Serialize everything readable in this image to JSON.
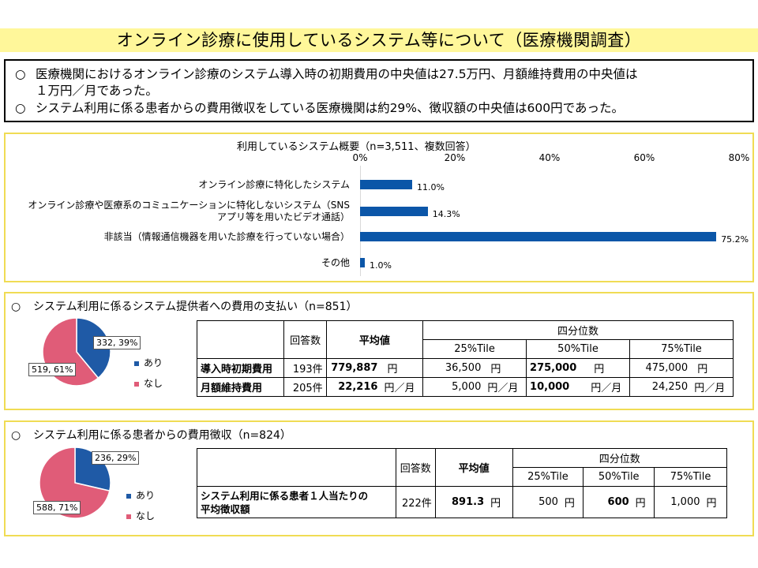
{
  "title": "オンライン診療に使用しているシステム等について（医療機関調査）",
  "summary": {
    "bullet": "○",
    "line1a": "医療機関におけるオンライン診療のシステム導入時の初期費用の中央値は27.5万円、月額維持費用の中央値は",
    "line1b": "１万円／月であった。",
    "line2": "システム利用に係る患者からの費用徴収をしている医療機関は約29%、徴収額の中央値は600円であった。"
  },
  "chart_data": {
    "type": "bar",
    "orientation": "horizontal",
    "title": "利用しているシステム概要（n=3,511、複数回答）",
    "categories": [
      "オンライン診療に特化したシステム",
      "オンライン診療や医療系のコミュニケーションに特化しないシステム（SNSアプリ等を用いたビデオ通話）",
      "非該当（情報通信機器を用いた診療を行っていない場合）",
      "その他"
    ],
    "values": [
      11.0,
      14.3,
      75.2,
      1.0
    ],
    "value_labels": [
      "11.0%",
      "14.3%",
      "75.2%",
      "1.0%"
    ],
    "xlim": [
      0,
      80
    ],
    "x_ticks": [
      "0%",
      "20%",
      "40%",
      "60%",
      "80%"
    ],
    "color": "#0b56a8",
    "category_label_lines": [
      [
        "オンライン診療に特化したシステム"
      ],
      [
        "オンライン診療や医療系のコミュニケーションに特化しないシステム（SNS",
        "アプリ等を用いたビデオ通話）"
      ],
      [
        "非該当（情報通信機器を用いた診療を行っていない場合）"
      ],
      [
        "その他"
      ]
    ]
  },
  "section2": {
    "heading": "システム利用に係るシステム提供者への費用の支払い（n=851）",
    "pie": {
      "slices": [
        {
          "name": "あり",
          "value": 332,
          "percent": 39,
          "label": "332, 39%",
          "color": "#1f5aa6"
        },
        {
          "name": "なし",
          "value": 519,
          "percent": 61,
          "label": "519, 61%",
          "color": "#e05c78"
        }
      ],
      "legend": [
        "あり",
        "なし"
      ]
    },
    "table": {
      "col_count": "回答数",
      "col_mean": "平均値",
      "col_quartile": "四分位数",
      "col_q25": "25%Tile",
      "col_q50": "50%Tile",
      "col_q75": "75%Tile",
      "rows": [
        {
          "label": "導入時初期費用",
          "count": "193件",
          "mean": "779,887",
          "mean_unit": "円",
          "q25": "36,500",
          "q25_unit": "円",
          "q50": "275,000",
          "q50_unit": "円",
          "q75": "475,000",
          "q75_unit": "円"
        },
        {
          "label": "月額維持費用",
          "count": "205件",
          "mean": "22,216",
          "mean_unit": "円／月",
          "q25": "5,000",
          "q25_unit": "円／月",
          "q50": "10,000",
          "q50_unit": "円／月",
          "q75": "24,250",
          "q75_unit": "円／月"
        }
      ]
    }
  },
  "section3": {
    "heading": "システム利用に係る患者からの費用徴収（n=824）",
    "pie": {
      "slices": [
        {
          "name": "あり",
          "value": 236,
          "percent": 29,
          "label": "236, 29%",
          "color": "#1f5aa6"
        },
        {
          "name": "なし",
          "value": 588,
          "percent": 71,
          "label": "588, 71%",
          "color": "#e05c78"
        }
      ],
      "legend": [
        "あり",
        "なし"
      ]
    },
    "table": {
      "col_count": "回答数",
      "col_mean": "平均値",
      "col_quartile": "四分位数",
      "col_q25": "25%Tile",
      "col_q50": "50%Tile",
      "col_q75": "75%Tile",
      "row": {
        "label_line1": "システム利用に係る患者１人当たりの",
        "label_line2": "平均徴収額",
        "count": "222件",
        "mean": "891.3",
        "mean_unit": "円",
        "q25": "500",
        "q25_unit": "円",
        "q50": "600",
        "q50_unit": "円",
        "q75": "1,000",
        "q75_unit": "円"
      }
    }
  }
}
